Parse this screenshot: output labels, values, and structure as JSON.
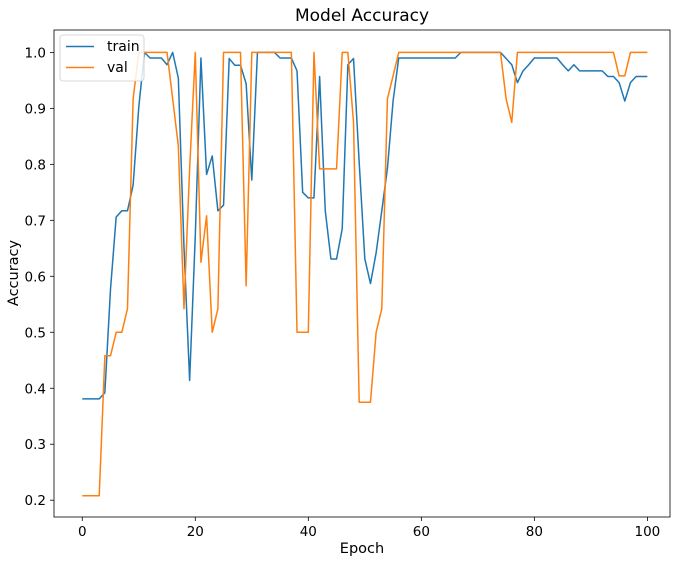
{
  "chart_data": {
    "type": "line",
    "title": "Model Accuracy",
    "xlabel": "Epoch",
    "ylabel": "Accuracy",
    "xlim": [
      -5,
      104
    ],
    "ylim": [
      0.17,
      1.04
    ],
    "xticks": [
      0,
      20,
      40,
      60,
      80,
      100
    ],
    "yticks": [
      0.2,
      0.3,
      0.4,
      0.5,
      0.6,
      0.7,
      0.8,
      0.9,
      1.0
    ],
    "ytick_labels": [
      "0.2",
      "0.3",
      "0.4",
      "0.5",
      "0.6",
      "0.7",
      "0.8",
      "0.9",
      "1.0"
    ],
    "grid": false,
    "legend_position": "top-left",
    "series": [
      {
        "name": "train",
        "color": "#1f77b4",
        "values": [
          0.381,
          0.381,
          0.381,
          0.381,
          0.392,
          0.577,
          0.706,
          0.717,
          0.717,
          0.763,
          0.902,
          1.0,
          0.99,
          0.99,
          0.99,
          0.978,
          1.0,
          0.954,
          0.652,
          0.414,
          0.672,
          0.99,
          0.782,
          0.815,
          0.717,
          0.727,
          0.989,
          0.977,
          0.977,
          0.944,
          0.772,
          1.0,
          1.0,
          1.0,
          1.0,
          0.99,
          0.99,
          0.99,
          0.967,
          0.75,
          0.74,
          0.74,
          0.957,
          0.717,
          0.631,
          0.631,
          0.685,
          0.978,
          0.989,
          0.804,
          0.631,
          0.587,
          0.642,
          0.717,
          0.793,
          0.913,
          0.99,
          0.99,
          0.99,
          0.99,
          0.99,
          0.99,
          0.99,
          0.99,
          0.99,
          0.99,
          0.99,
          1.0,
          1.0,
          1.0,
          1.0,
          1.0,
          1.0,
          1.0,
          1.0,
          0.989,
          0.978,
          0.946,
          0.967,
          0.978,
          0.99,
          0.99,
          0.99,
          0.99,
          0.99,
          0.978,
          0.967,
          0.978,
          0.967,
          0.967,
          0.967,
          0.967,
          0.967,
          0.957,
          0.957,
          0.946,
          0.913,
          0.946,
          0.957,
          0.957,
          0.957
        ]
      },
      {
        "name": "val",
        "color": "#ff7f0e",
        "values": [
          0.208,
          0.208,
          0.208,
          0.208,
          0.458,
          0.458,
          0.5,
          0.5,
          0.542,
          0.917,
          1.0,
          1.0,
          1.0,
          1.0,
          1.0,
          1.0,
          0.917,
          0.833,
          0.542,
          0.792,
          1.0,
          0.625,
          0.708,
          0.5,
          0.542,
          1.0,
          1.0,
          1.0,
          1.0,
          0.583,
          1.0,
          1.0,
          1.0,
          1.0,
          1.0,
          1.0,
          1.0,
          1.0,
          0.5,
          0.5,
          0.5,
          1.0,
          0.792,
          0.792,
          0.792,
          0.792,
          1.0,
          1.0,
          0.875,
          0.375,
          0.375,
          0.375,
          0.5,
          0.542,
          0.917,
          0.958,
          1.0,
          1.0,
          1.0,
          1.0,
          1.0,
          1.0,
          1.0,
          1.0,
          1.0,
          1.0,
          1.0,
          1.0,
          1.0,
          1.0,
          1.0,
          1.0,
          1.0,
          1.0,
          1.0,
          0.917,
          0.875,
          1.0,
          1.0,
          1.0,
          1.0,
          1.0,
          1.0,
          1.0,
          1.0,
          1.0,
          1.0,
          1.0,
          1.0,
          1.0,
          1.0,
          1.0,
          1.0,
          1.0,
          1.0,
          0.958,
          0.958,
          1.0,
          1.0,
          1.0,
          1.0
        ]
      }
    ]
  }
}
